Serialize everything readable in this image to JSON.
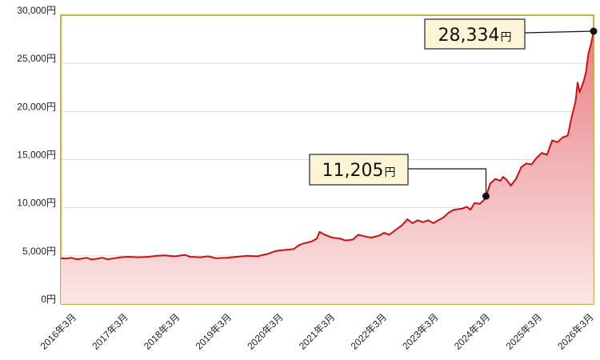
{
  "chart_data": {
    "type": "area",
    "y_unit": "円",
    "ylim": [
      0,
      30000
    ],
    "y_ticks": [
      "30,000円",
      "25,000円",
      "20,000円",
      "15,000円",
      "10,000円",
      "5,000円",
      "0円"
    ],
    "y_tick_values": [
      30000,
      25000,
      20000,
      15000,
      10000,
      5000,
      0
    ],
    "x_ticks": [
      "2016年3月",
      "2017年3月",
      "2018年3月",
      "2019年3月",
      "2020年3月",
      "2021年3月",
      "2022年3月",
      "2023年3月",
      "2024年3月",
      "2025年3月",
      "2026年3月"
    ],
    "grid": "horizontal",
    "series": [
      {
        "values": [
          [
            2016.0,
            4750
          ],
          [
            2016.1,
            4720
          ],
          [
            2016.2,
            4800
          ],
          [
            2016.3,
            4650
          ],
          [
            2016.4,
            4700
          ],
          [
            2016.5,
            4800
          ],
          [
            2016.6,
            4620
          ],
          [
            2016.7,
            4700
          ],
          [
            2016.8,
            4800
          ],
          [
            2016.9,
            4650
          ],
          [
            2017.0,
            4720
          ],
          [
            2017.15,
            4850
          ],
          [
            2017.3,
            4900
          ],
          [
            2017.5,
            4850
          ],
          [
            2017.7,
            4900
          ],
          [
            2017.85,
            5000
          ],
          [
            2018.0,
            5050
          ],
          [
            2018.2,
            4950
          ],
          [
            2018.4,
            5100
          ],
          [
            2018.5,
            4900
          ],
          [
            2018.7,
            4850
          ],
          [
            2018.85,
            4950
          ],
          [
            2019.0,
            4750
          ],
          [
            2019.2,
            4800
          ],
          [
            2019.4,
            4900
          ],
          [
            2019.6,
            5000
          ],
          [
            2019.8,
            4950
          ],
          [
            2020.0,
            5200
          ],
          [
            2020.15,
            5500
          ],
          [
            2020.3,
            5600
          ],
          [
            2020.5,
            5700
          ],
          [
            2020.6,
            6100
          ],
          [
            2020.7,
            6300
          ],
          [
            2020.85,
            6500
          ],
          [
            2020.95,
            6800
          ],
          [
            2021.0,
            7500
          ],
          [
            2021.1,
            7200
          ],
          [
            2021.25,
            6900
          ],
          [
            2021.4,
            6800
          ],
          [
            2021.5,
            6600
          ],
          [
            2021.65,
            6700
          ],
          [
            2021.75,
            7200
          ],
          [
            2021.9,
            7000
          ],
          [
            2022.0,
            6900
          ],
          [
            2022.15,
            7100
          ],
          [
            2022.25,
            7400
          ],
          [
            2022.35,
            7200
          ],
          [
            2022.45,
            7600
          ],
          [
            2022.6,
            8200
          ],
          [
            2022.7,
            8800
          ],
          [
            2022.8,
            8400
          ],
          [
            2022.9,
            8700
          ],
          [
            2023.0,
            8500
          ],
          [
            2023.1,
            8700
          ],
          [
            2023.2,
            8400
          ],
          [
            2023.3,
            8700
          ],
          [
            2023.4,
            9000
          ],
          [
            2023.5,
            9500
          ],
          [
            2023.6,
            9800
          ],
          [
            2023.75,
            9900
          ],
          [
            2023.85,
            10100
          ],
          [
            2023.92,
            9800
          ],
          [
            2024.0,
            10500
          ],
          [
            2024.1,
            10400
          ],
          [
            2024.18,
            10800
          ],
          [
            2024.22,
            11205
          ],
          [
            2024.3,
            12500
          ],
          [
            2024.4,
            13000
          ],
          [
            2024.5,
            12800
          ],
          [
            2024.55,
            13200
          ],
          [
            2024.62,
            12900
          ],
          [
            2024.7,
            12300
          ],
          [
            2024.8,
            13000
          ],
          [
            2024.9,
            14200
          ],
          [
            2025.0,
            14600
          ],
          [
            2025.1,
            14500
          ],
          [
            2025.2,
            15200
          ],
          [
            2025.3,
            15700
          ],
          [
            2025.4,
            15500
          ],
          [
            2025.5,
            17000
          ],
          [
            2025.6,
            16800
          ],
          [
            2025.7,
            17300
          ],
          [
            2025.8,
            17500
          ],
          [
            2025.88,
            19500
          ],
          [
            2025.95,
            21000
          ],
          [
            2025.99,
            23000
          ],
          [
            2026.03,
            22000
          ],
          [
            2026.1,
            23000
          ],
          [
            2026.15,
            24000
          ],
          [
            2026.2,
            26000
          ],
          [
            2026.25,
            27000
          ],
          [
            2026.3,
            28334
          ]
        ]
      }
    ],
    "annotations": [
      {
        "value": "11,205",
        "unit": "円",
        "x": 2024.22,
        "y": 11205
      },
      {
        "value": "28,334",
        "unit": "円",
        "x": 2026.3,
        "y": 28334
      }
    ],
    "colors": {
      "line": "#cc1111",
      "fill_top": "#e8797d",
      "fill_bottom": "#fbe3e4",
      "frame": "#b8960a",
      "grid": "#dddddd"
    }
  }
}
